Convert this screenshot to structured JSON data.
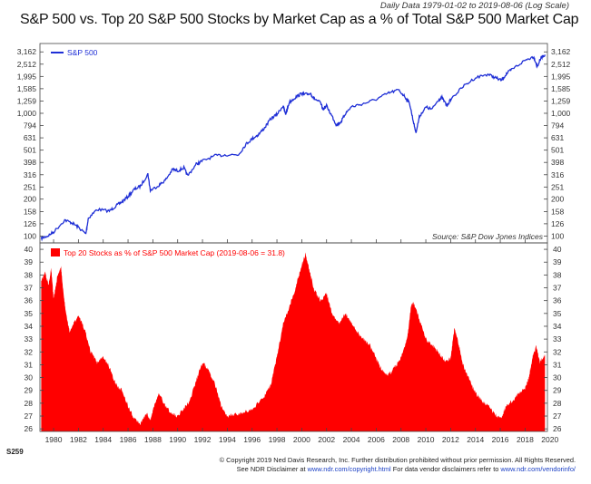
{
  "header": {
    "subtitle": "Daily Data 1979-01-02 to 2019-08-06 (Log Scale)",
    "title": "S&P 500 vs. Top 20 S&P 500 Stocks by Market Cap as a % of Total S&P 500 Market Cap"
  },
  "footer": {
    "code": "S259",
    "copyright_line": "© Copyright 2019 Ned Davis Research, Inc. Further distribution prohibited without prior permission. All Rights Reserved.",
    "disclaimer_prefix": "See NDR Disclaimer at ",
    "disclaimer_url": "www.ndr.com/copyright.html",
    "vendor_prefix": "  For data vendor disclaimers refer to ",
    "vendor_url": "www.ndr.com/vendorinfo/"
  },
  "colors": {
    "sp500_line": "#1f2fd6",
    "top20_fill": "#ff0000",
    "axis": "#444444",
    "grid": "#d9d9d9"
  },
  "chart_data": [
    {
      "type": "line",
      "title": "",
      "scale": "log",
      "legend": "top-left",
      "source": "Source:   S&P Dow Jones Indices",
      "ylim": [
        88,
        3700
      ],
      "y_ticks": [
        "3,162",
        "2,512",
        "1,995",
        "1,585",
        "1,259",
        "1,000",
        "794",
        "631",
        "501",
        "398",
        "316",
        "251",
        "200",
        "158",
        "126",
        "100"
      ],
      "series": [
        {
          "name": "S&P 500",
          "x": [
            1979.0,
            1979.5,
            1980.0,
            1980.9,
            1981.5,
            1982.0,
            1982.6,
            1982.8,
            1983.5,
            1984.5,
            1985.0,
            1985.5,
            1986.0,
            1986.5,
            1987.0,
            1987.6,
            1987.8,
            1988.5,
            1989.0,
            1989.6,
            1990.0,
            1990.5,
            1990.8,
            1991.5,
            1992.0,
            1993.0,
            1994.0,
            1994.9,
            1995.5,
            1996.0,
            1996.5,
            1997.0,
            1997.5,
            1998.0,
            1998.5,
            1998.7,
            1999.0,
            1999.5,
            2000.0,
            2000.2,
            2000.7,
            2001.0,
            2001.5,
            2001.7,
            2002.0,
            2002.5,
            2002.8,
            2003.2,
            2003.5,
            2004.0,
            2005.0,
            2006.0,
            2007.0,
            2007.8,
            2008.3,
            2008.7,
            2009.0,
            2009.2,
            2009.5,
            2010.0,
            2010.5,
            2011.0,
            2011.3,
            2011.7,
            2012.0,
            2013.0,
            2014.0,
            2015.0,
            2015.6,
            2016.1,
            2016.5,
            2017.0,
            2018.0,
            2018.7,
            2018.98,
            2019.3,
            2019.6
          ],
          "values": [
            96,
            100,
            108,
            135,
            128,
            118,
            104,
            140,
            165,
            160,
            175,
            190,
            210,
            240,
            255,
            320,
            235,
            260,
            285,
            350,
            340,
            360,
            310,
            385,
            410,
            450,
            460,
            460,
            560,
            620,
            670,
            760,
            900,
            980,
            1150,
            980,
            1230,
            1350,
            1450,
            1420,
            1450,
            1320,
            1220,
            1080,
            1150,
            920,
            800,
            860,
            990,
            1130,
            1200,
            1300,
            1460,
            1550,
            1370,
            1200,
            850,
            700,
            950,
            1120,
            1080,
            1280,
            1340,
            1150,
            1300,
            1650,
            1950,
            2080,
            1950,
            1850,
            2100,
            2300,
            2700,
            2900,
            2400,
            2850,
            3000
          ]
        }
      ]
    },
    {
      "type": "area",
      "title": "Top 20 Stocks as % of S&P 500 Market Cap (2019-08-06 = 31.8)",
      "legend": "top-left",
      "ylim": [
        25.8,
        40.5
      ],
      "y_ticks": [
        40,
        39,
        38,
        37,
        36,
        35,
        34,
        33,
        32,
        31,
        30,
        29,
        28,
        27,
        26
      ],
      "x_ticks": [
        1980,
        1982,
        1984,
        1986,
        1988,
        1990,
        1992,
        1994,
        1996,
        1998,
        2000,
        2002,
        2004,
        2006,
        2008,
        2010,
        2012,
        2014,
        2016,
        2018,
        2020
      ],
      "series": [
        {
          "name": "Top 20 Stocks as % of S&P 500 Market Cap (2019-08-06 = 31.8)",
          "x": [
            1979.0,
            1979.3,
            1979.6,
            1979.8,
            1980.0,
            1980.3,
            1980.6,
            1980.8,
            1981.0,
            1981.3,
            1981.6,
            1982.0,
            1982.5,
            1983.0,
            1983.5,
            1984.0,
            1984.5,
            1985.0,
            1985.5,
            1986.0,
            1986.5,
            1987.0,
            1987.5,
            1987.8,
            1988.0,
            1988.5,
            1989.0,
            1989.5,
            1990.0,
            1990.5,
            1991.0,
            1991.5,
            1992.0,
            1992.5,
            1993.0,
            1993.5,
            1994.0,
            1995.0,
            1996.0,
            1997.0,
            1997.5,
            1998.0,
            1998.5,
            1999.0,
            1999.5,
            2000.0,
            2000.3,
            2000.6,
            2001.0,
            2001.5,
            2002.0,
            2002.5,
            2003.0,
            2003.5,
            2004.0,
            2004.5,
            2005.0,
            2005.5,
            2006.0,
            2006.5,
            2007.0,
            2007.5,
            2008.0,
            2008.5,
            2008.8,
            2009.0,
            2009.5,
            2010.0,
            2010.5,
            2011.0,
            2011.5,
            2012.0,
            2012.3,
            2012.6,
            2013.0,
            2013.5,
            2014.0,
            2014.5,
            2015.0,
            2015.5,
            2016.0,
            2016.5,
            2017.0,
            2017.5,
            2018.0,
            2018.3,
            2018.6,
            2018.9,
            2019.2,
            2019.6
          ],
          "values": [
            37.5,
            38.2,
            37.2,
            38.5,
            36.2,
            37.8,
            38.7,
            36.5,
            35.0,
            33.5,
            34.2,
            34.8,
            33.8,
            32.0,
            31.2,
            31.6,
            30.8,
            29.5,
            29.0,
            27.8,
            26.8,
            26.4,
            27.2,
            26.6,
            27.5,
            28.8,
            27.8,
            27.2,
            27.0,
            27.6,
            28.2,
            29.8,
            31.2,
            30.6,
            29.5,
            27.8,
            27.0,
            27.2,
            27.5,
            28.6,
            29.4,
            31.6,
            34.2,
            35.5,
            37.0,
            38.8,
            39.6,
            38.5,
            36.8,
            36.0,
            36.5,
            34.8,
            34.2,
            35.0,
            34.2,
            33.5,
            33.0,
            32.5,
            31.5,
            30.5,
            30.2,
            30.8,
            31.5,
            33.0,
            35.5,
            35.8,
            34.5,
            33.0,
            32.5,
            32.0,
            31.3,
            31.5,
            33.8,
            32.8,
            31.0,
            29.8,
            28.8,
            28.2,
            27.8,
            27.2,
            26.8,
            27.8,
            28.2,
            28.8,
            29.2,
            30.0,
            31.6,
            32.4,
            31.2,
            31.8
          ]
        }
      ]
    }
  ]
}
